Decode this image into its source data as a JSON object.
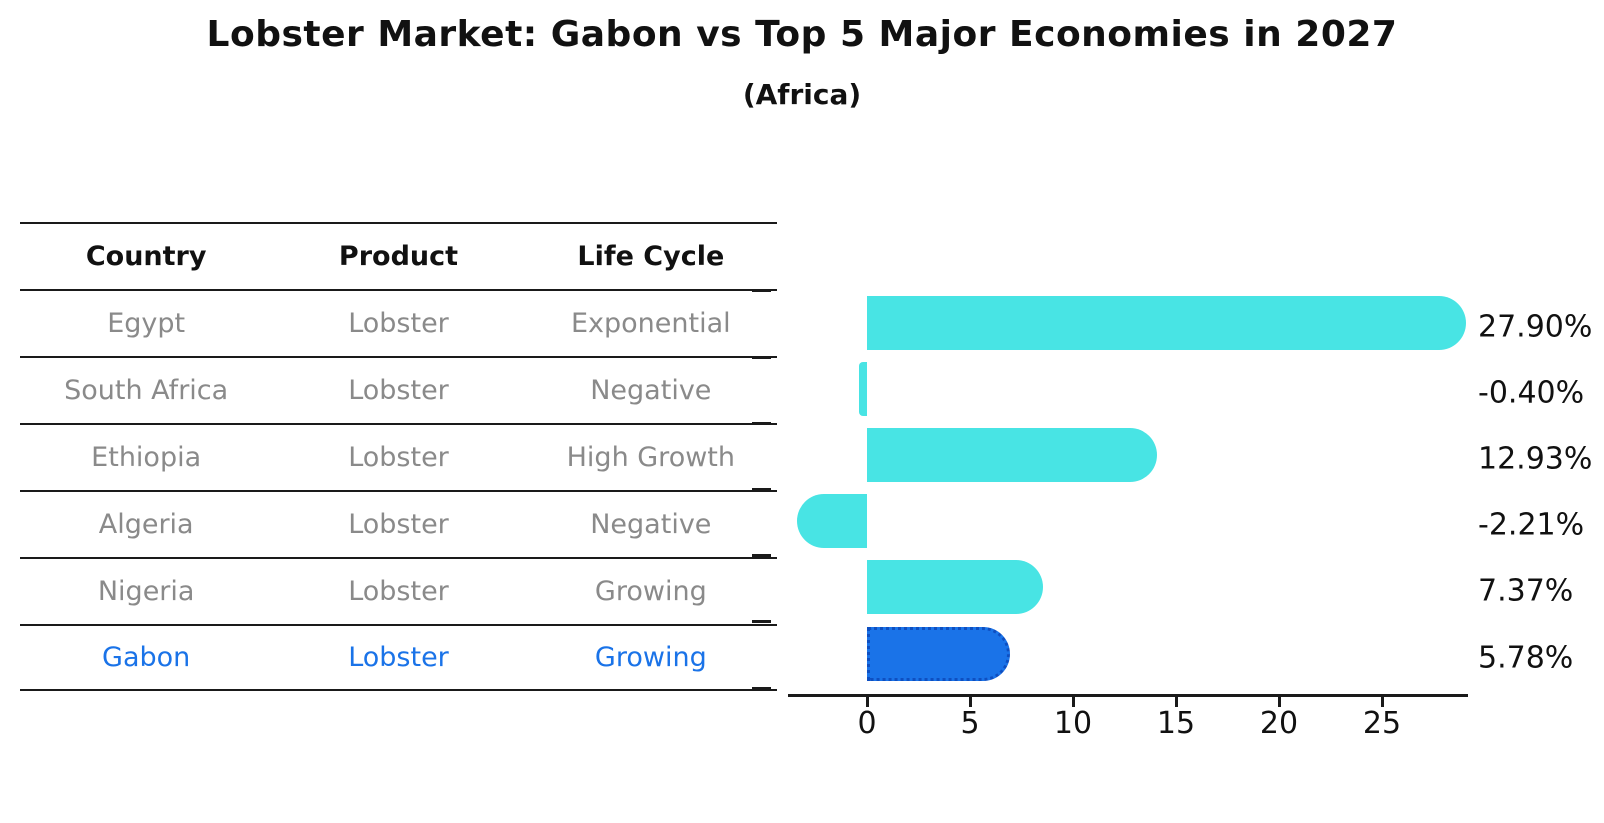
{
  "header": {
    "title": "Lobster Market: Gabon vs Top 5 Major Economies in 2027",
    "subtitle": "(Africa)"
  },
  "table": {
    "headers": [
      "Country",
      "Product",
      "Life Cycle"
    ],
    "rows": [
      {
        "country": "Egypt",
        "product": "Lobster",
        "life_cycle": "Exponential"
      },
      {
        "country": "South Africa",
        "product": "Lobster",
        "life_cycle": "Negative"
      },
      {
        "country": "Ethiopia",
        "product": "Lobster",
        "life_cycle": "High Growth"
      },
      {
        "country": "Algeria",
        "product": "Lobster",
        "life_cycle": "Negative"
      },
      {
        "country": "Nigeria",
        "product": "Lobster",
        "life_cycle": "Growing"
      },
      {
        "country": "Gabon",
        "product": "Lobster",
        "life_cycle": "Growing"
      }
    ],
    "highlight_row_index": 5
  },
  "chart_data": {
    "type": "bar",
    "orientation": "horizontal",
    "title": "Lobster Market: Gabon vs Top 5 Major Economies in 2027",
    "subtitle": "(Africa)",
    "categories": [
      "Egypt",
      "South Africa",
      "Ethiopia",
      "Algeria",
      "Nigeria",
      "Gabon"
    ],
    "values": [
      27.9,
      -0.4,
      12.93,
      -2.21,
      7.37,
      5.78
    ],
    "value_labels": [
      "27.90%",
      "-0.40%",
      "12.93%",
      "-2.21%",
      "7.37%",
      "5.78%"
    ],
    "unit": "%",
    "xticks": [
      0,
      5,
      10,
      15,
      20,
      25
    ],
    "xlim": [
      -3.8,
      29.2
    ],
    "grid": false,
    "legend": null,
    "highlight_index": 5
  },
  "colors": {
    "bar_default": "#48E4E4",
    "bar_highlight": "#1A73E8",
    "bar_highlight_border": "#0E4FC1",
    "table_text": "#8a8a8a",
    "table_highlight_text": "#1a73e8",
    "axis": "#1a1a1a",
    "label_text": "#111111"
  }
}
